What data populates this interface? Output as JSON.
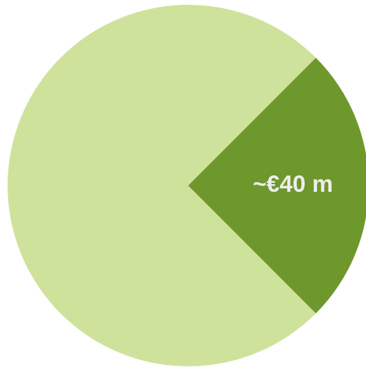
{
  "chart_data": {
    "type": "pie",
    "categories": [
      null,
      null
    ],
    "values": [
      120,
      40
    ],
    "value_labels": [
      null,
      "~€40 m"
    ],
    "colors": [
      "#cfe29b",
      "#6e982b"
    ]
  }
}
